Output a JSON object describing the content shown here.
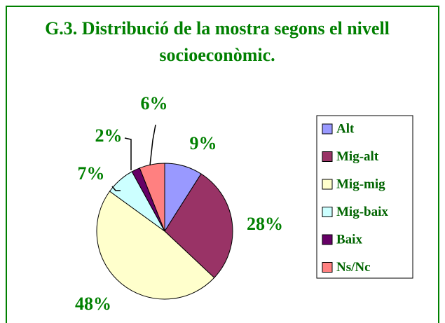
{
  "chart_data": {
    "type": "pie",
    "title": "G.3. Distribució de la mostra segons el nivell socioeconòmic.",
    "categories": [
      "Alt",
      "Mig-alt",
      "Mig-mig",
      "Mig-baix",
      "Baix",
      "Ns/Nc"
    ],
    "values": [
      9,
      28,
      48,
      7,
      2,
      6
    ],
    "value_labels": [
      "9%",
      "28%",
      "48%",
      "7%",
      "2%",
      "6%"
    ],
    "colors": [
      "#9999ff",
      "#993366",
      "#ffffcc",
      "#ccffff",
      "#660066",
      "#ff8080"
    ],
    "legend": "right"
  }
}
